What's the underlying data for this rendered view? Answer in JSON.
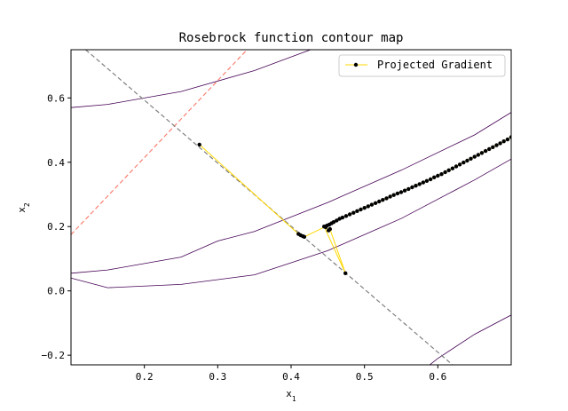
{
  "chart_data": {
    "type": "line",
    "title": "Rosebrock function contour map",
    "xlabel": "x",
    "xlabel_sub": "1",
    "ylabel": "x",
    "ylabel_sub": "2",
    "xlim": [
      0.1,
      0.7
    ],
    "ylim": [
      -0.23,
      0.75
    ],
    "xticks": [
      0.2,
      0.3,
      0.4,
      0.5,
      0.6
    ],
    "xtick_labels": [
      "0.2",
      "0.3",
      "0.4",
      "0.5",
      "0.6"
    ],
    "yticks": [
      -0.2,
      0.0,
      0.2,
      0.4,
      0.6
    ],
    "ytick_labels": [
      "−0.2",
      "0.0",
      "0.2",
      "0.4",
      "0.6"
    ],
    "grid": false,
    "legend_position": "top-right",
    "legend": [
      {
        "label": "Projected Gradient",
        "color": "#ffd700"
      }
    ],
    "colors": {
      "contour": "#440154",
      "gradient_path": "#ffd700",
      "marker": "#000000",
      "constraint_line": "#808080",
      "tangent_line": "#fa8072"
    },
    "contours": [
      {
        "x": [
          0.1,
          0.15,
          0.25,
          0.35,
          0.45,
          0.55,
          0.65,
          0.7
        ],
        "y": [
          0.57,
          0.58,
          0.62,
          0.685,
          0.77,
          0.86,
          0.96,
          1.02
        ]
      },
      {
        "x": [
          0.1,
          0.15,
          0.25,
          0.3,
          0.35,
          0.45,
          0.55,
          0.65,
          0.7
        ],
        "y": [
          0.055,
          0.065,
          0.105,
          0.155,
          0.185,
          0.275,
          0.375,
          0.485,
          0.555
        ]
      },
      {
        "x": [
          0.1,
          0.15,
          0.25,
          0.35,
          0.45,
          0.55,
          0.65,
          0.7
        ],
        "y": [
          0.04,
          0.01,
          0.02,
          0.05,
          0.125,
          0.225,
          0.345,
          0.41
        ]
      },
      {
        "x": [
          0.55,
          0.6,
          0.65,
          0.7
        ],
        "y": [
          -0.3,
          -0.21,
          -0.135,
          -0.075
        ]
      }
    ],
    "constraint_line": {
      "x": [
        0.12,
        0.62
      ],
      "y": [
        0.75,
        -0.23
      ]
    },
    "tangent_line": {
      "x": [
        0.1,
        0.34
      ],
      "y": [
        0.175,
        0.75
      ]
    },
    "series": [
      {
        "name": "Projected Gradient",
        "x": [
          0.275,
          0.41,
          0.413,
          0.416,
          0.418,
          0.447,
          0.451,
          0.453,
          0.474,
          0.445,
          0.447,
          0.449,
          0.452,
          0.455,
          0.458,
          0.462,
          0.466,
          0.47,
          0.475,
          0.48,
          0.485,
          0.49,
          0.495,
          0.5,
          0.505,
          0.51,
          0.515,
          0.52,
          0.525,
          0.53,
          0.535,
          0.54,
          0.545,
          0.55,
          0.555,
          0.56,
          0.565,
          0.57,
          0.575,
          0.58,
          0.585,
          0.59,
          0.595,
          0.6,
          0.605,
          0.61,
          0.615,
          0.62,
          0.625,
          0.63,
          0.635,
          0.64,
          0.645,
          0.65,
          0.655,
          0.66,
          0.665,
          0.67,
          0.675,
          0.68,
          0.685,
          0.69,
          0.695,
          0.7
        ],
        "y": [
          0.455,
          0.177,
          0.173,
          0.17,
          0.168,
          0.2,
          0.188,
          0.192,
          0.055,
          0.2,
          0.198,
          0.203,
          0.206,
          0.21,
          0.214,
          0.219,
          0.224,
          0.228,
          0.233,
          0.238,
          0.243,
          0.248,
          0.253,
          0.258,
          0.263,
          0.268,
          0.273,
          0.278,
          0.283,
          0.288,
          0.293,
          0.298,
          0.303,
          0.307,
          0.312,
          0.317,
          0.322,
          0.327,
          0.332,
          0.337,
          0.342,
          0.347,
          0.353,
          0.358,
          0.363,
          0.369,
          0.375,
          0.381,
          0.387,
          0.393,
          0.399,
          0.405,
          0.411,
          0.417,
          0.423,
          0.429,
          0.435,
          0.441,
          0.447,
          0.453,
          0.459,
          0.465,
          0.471,
          0.478
        ]
      }
    ]
  }
}
